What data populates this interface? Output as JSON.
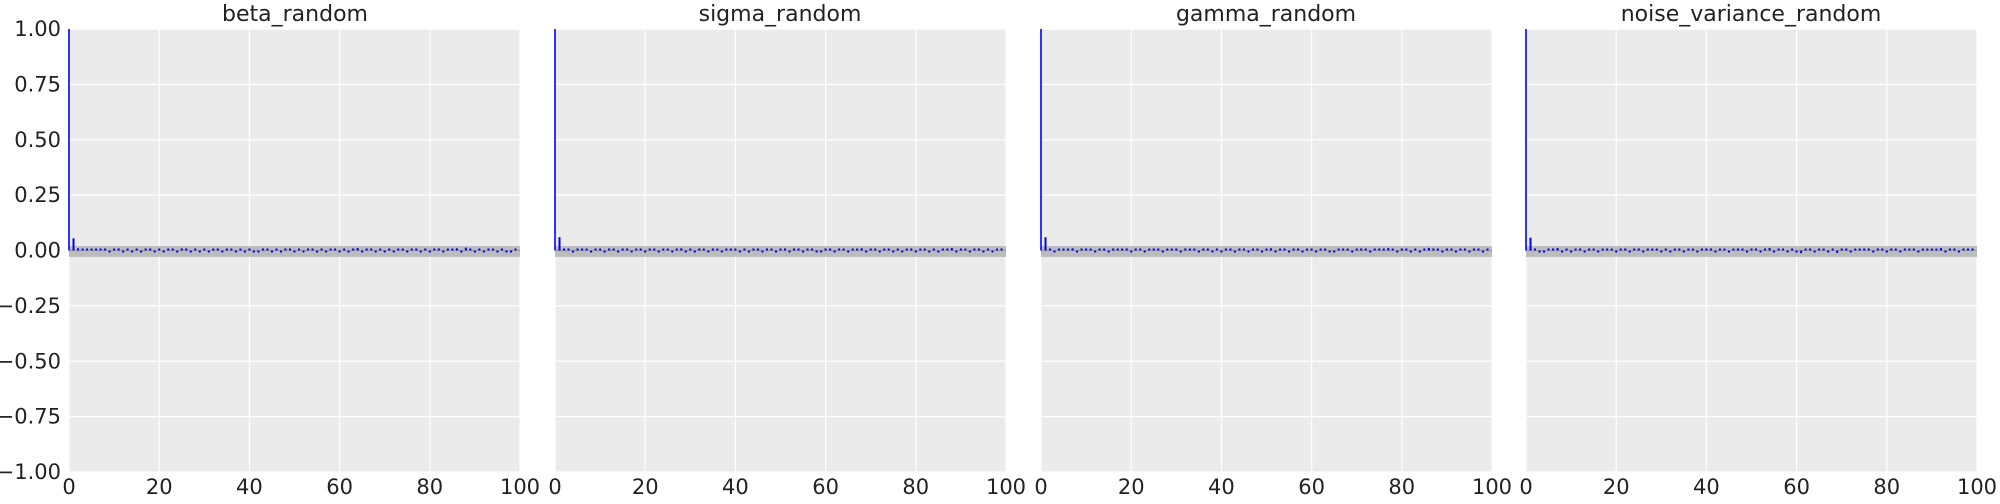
{
  "chart_data": [
    {
      "type": "bar",
      "title": "beta_random",
      "xlim": [
        0,
        100
      ],
      "ylim": [
        -1.0,
        1.0
      ],
      "x_ticks": [
        "0",
        "20",
        "40",
        "60",
        "80",
        "100"
      ],
      "y_ticks": [
        "1.00",
        "0.75",
        "0.50",
        "0.25",
        "0.00",
        "−0.25",
        "−0.50",
        "−0.75",
        "−1.00"
      ],
      "grid": true,
      "confidence_band": [
        -0.02,
        0.02
      ],
      "lags": [
        0,
        1,
        2,
        3,
        4,
        5,
        6,
        7,
        8,
        9,
        10,
        11,
        12,
        13,
        14,
        15,
        16,
        17,
        18,
        19,
        20,
        21,
        22,
        23,
        24,
        25,
        26,
        27,
        28,
        29,
        30,
        31,
        32,
        33,
        34,
        35,
        36,
        37,
        38,
        39,
        40,
        41,
        42,
        43,
        44,
        45,
        46,
        47,
        48,
        49,
        50,
        51,
        52,
        53,
        54,
        55,
        56,
        57,
        58,
        59,
        60,
        61,
        62,
        63,
        64,
        65,
        66,
        67,
        68,
        69,
        70,
        71,
        72,
        73,
        74,
        75,
        76,
        77,
        78,
        79,
        80,
        81,
        82,
        83,
        84,
        85,
        86,
        87,
        88,
        89,
        90,
        91,
        92,
        93,
        94,
        95,
        96,
        97,
        98,
        99
      ],
      "values": [
        1.0,
        0.055,
        0.01,
        0.006,
        0.004,
        0.003,
        0.006,
        0.008,
        0.002,
        -0.003,
        0.004,
        0.001,
        -0.004,
        0.007,
        -0.008,
        0.004,
        -0.006,
        0.002,
        0.001,
        -0.002,
        0.005,
        -0.003,
        0.002,
        0.006,
        -0.004,
        0.001,
        0.003,
        -0.002,
        0.007,
        -0.008,
        0.004,
        -0.001,
        0.002,
        0.006,
        -0.003,
        0.005,
        0.001,
        -0.004,
        0.008,
        -0.002,
        0.003,
        -0.009,
        -0.006,
        0.002,
        0.004,
        -0.003,
        0.001,
        -0.005,
        0.006,
        0.002,
        -0.001,
        0.003,
        -0.004,
        0.005,
        0.002,
        -0.002,
        0.004,
        -0.006,
        0.001,
        0.003,
        -0.002,
        0.005,
        -0.004,
        0.002,
        0.011,
        -0.003,
        0.004,
        0.001,
        -0.002,
        0.006,
        -0.001,
        0.003,
        -0.005,
        0.002,
        0.004,
        -0.003,
        0.001,
        0.006,
        -0.002,
        0.004,
        -0.007,
        0.003,
        0.008,
        -0.004,
        0.002,
        0.006,
        0.01,
        -0.003,
        0.013,
        0.004,
        -0.002,
        0.005,
        -0.001,
        0.003,
        0.002,
        -0.004,
        0.006,
        -0.002,
        -0.005,
        0.003
      ]
    },
    {
      "type": "bar",
      "title": "sigma_random",
      "xlim": [
        0,
        100
      ],
      "ylim": [
        -1.0,
        1.0
      ],
      "x_ticks": [
        "0",
        "20",
        "40",
        "60",
        "80",
        "100"
      ],
      "grid": true,
      "confidence_band": [
        -0.02,
        0.02
      ],
      "lags": [
        0,
        1,
        2,
        3,
        4,
        5,
        6,
        7,
        8,
        9,
        10,
        11,
        12,
        13,
        14,
        15,
        16,
        17,
        18,
        19,
        20,
        21,
        22,
        23,
        24,
        25,
        26,
        27,
        28,
        29,
        30,
        31,
        32,
        33,
        34,
        35,
        36,
        37,
        38,
        39,
        40,
        41,
        42,
        43,
        44,
        45,
        46,
        47,
        48,
        49,
        50,
        51,
        52,
        53,
        54,
        55,
        56,
        57,
        58,
        59,
        60,
        61,
        62,
        63,
        64,
        65,
        66,
        67,
        68,
        69,
        70,
        71,
        72,
        73,
        74,
        75,
        76,
        77,
        78,
        79,
        80,
        81,
        82,
        83,
        84,
        85,
        86,
        87,
        88,
        89,
        90,
        91,
        92,
        93,
        94,
        95,
        96,
        97,
        98,
        99
      ],
      "values": [
        1.0,
        0.06,
        0.008,
        0.005,
        -0.003,
        0.006,
        0.002,
        0.008,
        -0.004,
        0.003,
        0.006,
        -0.002,
        0.004,
        0.001,
        -0.003,
        0.005,
        0.002,
        -0.004,
        0.006,
        0.003,
        -0.002,
        0.004,
        0.005,
        -0.003,
        0.002,
        0.006,
        -0.004,
        0.003,
        0.01,
        -0.005,
        0.004,
        -0.006,
        0.002,
        0.005,
        -0.002,
        0.003,
        0.006,
        -0.003,
        0.004,
        0.008,
        0.002,
        -0.005,
        0.003,
        -0.009,
        0.004,
        0.006,
        -0.002,
        0.003,
        0.005,
        -0.004,
        0.002,
        0.004,
        -0.003,
        0.001,
        0.005,
        -0.002,
        0.003,
        0.004,
        -0.006,
        -0.003,
        0.002,
        0.004,
        -0.002,
        0.003,
        0.005,
        -0.004,
        0.002,
        0.006,
        0.01,
        -0.003,
        0.004,
        0.002,
        -0.005,
        0.003,
        0.001,
        -0.002,
        0.004,
        -0.003,
        0.005,
        0.002,
        -0.006,
        0.003,
        0.004,
        -0.005,
        0.002,
        -0.007,
        0.003,
        0.006,
        0.011,
        -0.002,
        0.004,
        0.003,
        -0.003,
        0.005,
        0.002,
        -0.004,
        0.003,
        -0.006,
        0.004,
        0.002
      ]
    },
    {
      "type": "bar",
      "title": "gamma_random",
      "xlim": [
        0,
        100
      ],
      "ylim": [
        -1.0,
        1.0
      ],
      "x_ticks": [
        "0",
        "20",
        "40",
        "60",
        "80",
        "100"
      ],
      "grid": true,
      "confidence_band": [
        -0.02,
        0.02
      ],
      "lags": [
        0,
        1,
        2,
        3,
        4,
        5,
        6,
        7,
        8,
        9,
        10,
        11,
        12,
        13,
        14,
        15,
        16,
        17,
        18,
        19,
        20,
        21,
        22,
        23,
        24,
        25,
        26,
        27,
        28,
        29,
        30,
        31,
        32,
        33,
        34,
        35,
        36,
        37,
        38,
        39,
        40,
        41,
        42,
        43,
        44,
        45,
        46,
        47,
        48,
        49,
        50,
        51,
        52,
        53,
        54,
        55,
        56,
        57,
        58,
        59,
        60,
        61,
        62,
        63,
        64,
        65,
        66,
        67,
        68,
        69,
        70,
        71,
        72,
        73,
        74,
        75,
        76,
        77,
        78,
        79,
        80,
        81,
        82,
        83,
        84,
        85,
        86,
        87,
        88,
        89,
        90,
        91,
        92,
        93,
        94,
        95,
        96,
        97,
        98,
        99
      ],
      "values": [
        1.0,
        0.06,
        0.005,
        -0.002,
        0.004,
        0.006,
        0.003,
        0.01,
        -0.003,
        0.004,
        0.006,
        0.002,
        -0.004,
        0.005,
        0.003,
        -0.002,
        0.004,
        0.006,
        0.002,
        0.005,
        -0.003,
        0.004,
        0.003,
        -0.005,
        0.002,
        0.004,
        0.006,
        -0.003,
        0.005,
        0.002,
        0.004,
        -0.002,
        0.003,
        0.005,
        0.002,
        -0.004,
        0.003,
        0.006,
        -0.002,
        0.004,
        -0.006,
        0.003,
        0.002,
        -0.005,
        0.004,
        0.003,
        -0.002,
        0.005,
        0.002,
        -0.004,
        0.003,
        0.01,
        -0.002,
        0.004,
        0.003,
        -0.005,
        0.002,
        0.004,
        -0.003,
        0.008,
        0.003,
        -0.004,
        0.002,
        0.005,
        -0.003,
        -0.006,
        0.004,
        0.002,
        0.006,
        -0.003,
        0.004,
        0.002,
        0.007,
        -0.003,
        0.005,
        0.002,
        0.009,
        0.011,
        0.004,
        -0.002,
        0.006,
        0.003,
        -0.005,
        0.002,
        -0.006,
        0.004,
        0.012,
        0.003,
        0.002,
        -0.003,
        0.005,
        0.002,
        -0.002,
        0.004,
        0.003,
        -0.004,
        0.002,
        0.008,
        -0.003,
        0.004
      ]
    },
    {
      "type": "bar",
      "title": "noise_variance_random",
      "xlim": [
        0,
        100
      ],
      "ylim": [
        -1.0,
        1.0
      ],
      "x_ticks": [
        "0",
        "20",
        "40",
        "60",
        "80",
        "100"
      ],
      "grid": true,
      "confidence_band": [
        -0.02,
        0.02
      ],
      "lags": [
        0,
        1,
        2,
        3,
        4,
        5,
        6,
        7,
        8,
        9,
        10,
        11,
        12,
        13,
        14,
        15,
        16,
        17,
        18,
        19,
        20,
        21,
        22,
        23,
        24,
        25,
        26,
        27,
        28,
        29,
        30,
        31,
        32,
        33,
        34,
        35,
        36,
        37,
        38,
        39,
        40,
        41,
        42,
        43,
        44,
        45,
        46,
        47,
        48,
        49,
        50,
        51,
        52,
        53,
        54,
        55,
        56,
        57,
        58,
        59,
        60,
        61,
        62,
        63,
        64,
        65,
        66,
        67,
        68,
        69,
        70,
        71,
        72,
        73,
        74,
        75,
        76,
        77,
        78,
        79,
        80,
        81,
        82,
        83,
        84,
        85,
        86,
        87,
        88,
        89,
        90,
        91,
        92,
        93,
        94,
        95,
        96,
        97,
        98,
        99
      ],
      "values": [
        1.0,
        0.058,
        0.004,
        -0.004,
        -0.006,
        0.003,
        0.002,
        0.012,
        -0.003,
        0.004,
        -0.005,
        0.002,
        0.004,
        -0.003,
        0.005,
        0.002,
        -0.004,
        0.003,
        0.005,
        0.002,
        -0.003,
        0.004,
        0.006,
        -0.002,
        0.004,
        0.003,
        -0.005,
        0.002,
        0.004,
        0.006,
        -0.003,
        0.005,
        -0.007,
        0.003,
        0.004,
        -0.004,
        0.002,
        0.005,
        -0.003,
        0.004,
        0.006,
        0.002,
        -0.005,
        0.003,
        0.004,
        -0.004,
        0.002,
        0.005,
        0.003,
        -0.004,
        0.002,
        0.006,
        -0.003,
        0.004,
        0.011,
        -0.005,
        0.003,
        0.009,
        -0.004,
        0.005,
        -0.009,
        -0.012,
        0.004,
        0.002,
        -0.003,
        0.005,
        0.002,
        -0.004,
        0.003,
        -0.011,
        0.002,
        0.004,
        -0.003,
        0.005,
        0.002,
        0.006,
        0.003,
        -0.004,
        0.002,
        0.005,
        -0.003,
        0.004,
        0.006,
        -0.002,
        0.003,
        0.005,
        0.004,
        -0.003,
        0.005,
        0.002,
        0.004,
        0.006,
        0.011,
        -0.003,
        0.004,
        0.009,
        -0.004,
        0.006,
        0.003,
        0.005
      ]
    }
  ]
}
